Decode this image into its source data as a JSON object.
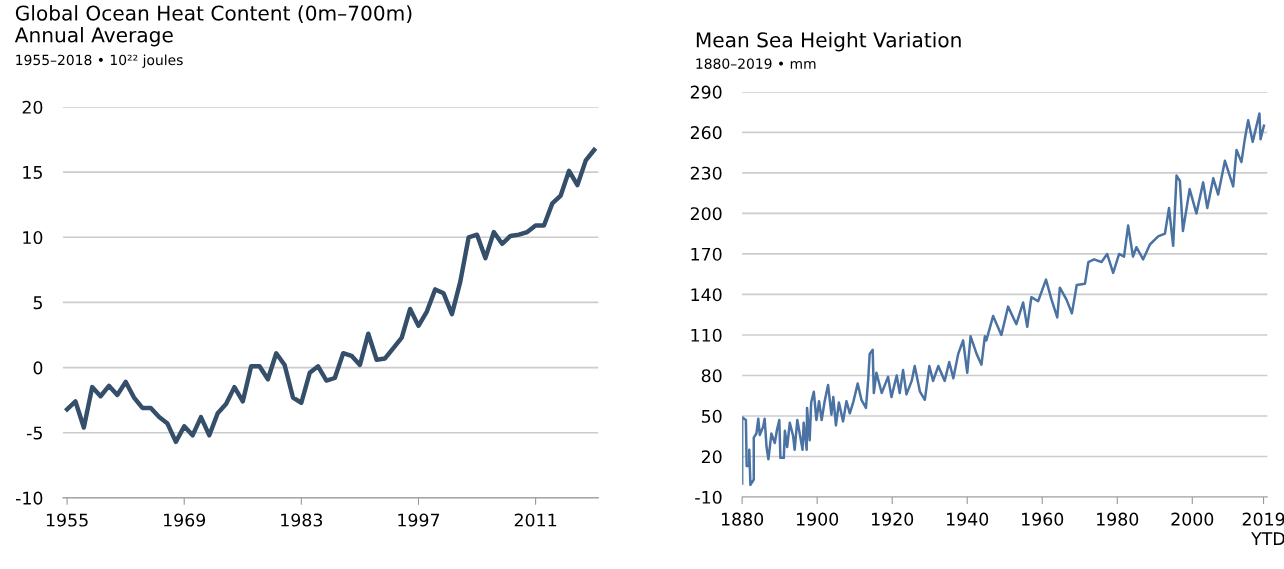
{
  "chart_data": [
    {
      "type": "line",
      "title": "Global Ocean Heat Content (0m–700m)\nAnnual Average",
      "subtitle": "1955–2018 • 10²² joules",
      "x": [
        1955,
        1956,
        1957,
        1958,
        1959,
        1960,
        1961,
        1962,
        1963,
        1964,
        1965,
        1966,
        1967,
        1968,
        1969,
        1970,
        1971,
        1972,
        1973,
        1974,
        1975,
        1976,
        1977,
        1978,
        1979,
        1980,
        1981,
        1982,
        1983,
        1984,
        1985,
        1986,
        1987,
        1988,
        1989,
        1990,
        1991,
        1992,
        1993,
        1994,
        1995,
        1996,
        1997,
        1998,
        1999,
        2000,
        2001,
        2002,
        2003,
        2004,
        2005,
        2006,
        2007,
        2008,
        2009,
        2010,
        2011,
        2012,
        2013,
        2014,
        2015,
        2016,
        2017,
        2018
      ],
      "series": [
        {
          "color": "#354f6b",
          "values": [
            -3.2,
            -2.6,
            -4.6,
            -1.5,
            -2.2,
            -1.4,
            -2.1,
            -1.1,
            -2.3,
            -3.1,
            -3.1,
            -3.8,
            -4.3,
            -5.7,
            -4.5,
            -5.2,
            -3.8,
            -5.2,
            -3.5,
            -2.8,
            -1.5,
            -2.6,
            0.1,
            0.1,
            -0.9,
            1.1,
            0.2,
            -2.3,
            -2.7,
            -0.4,
            0.1,
            -1.0,
            -0.8,
            1.1,
            0.9,
            0.2,
            2.6,
            0.6,
            0.7,
            1.5,
            2.3,
            4.5,
            3.2,
            4.3,
            6.0,
            5.7,
            4.1,
            6.6,
            10.0,
            10.2,
            8.4,
            10.4,
            9.5,
            10.1,
            10.2,
            10.4,
            10.9,
            10.9,
            12.6,
            13.2,
            15.1,
            14.0,
            15.9,
            16.7
          ]
        }
      ],
      "xlim": [
        1954.5,
        2018.5
      ],
      "xticks": [
        1955,
        1969,
        1983,
        1997,
        2011
      ],
      "ylim": [
        -10,
        20
      ],
      "yticks": [
        -10,
        -5,
        0,
        5,
        10,
        15,
        20
      ],
      "grid": "y",
      "line_style": "solid"
    },
    {
      "type": "line",
      "title": "Mean Sea Height Variation",
      "subtitle": "1880–2019 • mm",
      "x": [
        1880.0,
        1880.0,
        1881.0,
        1881.2,
        1881.9,
        1881.9,
        1882.2,
        1883.1,
        1883.1,
        1883.8,
        1884.3,
        1884.7,
        1885.6,
        1886.0,
        1886.5,
        1887.0,
        1887.8,
        1888.7,
        1889.3,
        1889.9,
        1890.2,
        1891.1,
        1891.4,
        1892.0,
        1892.7,
        1893.6,
        1894.0,
        1894.7,
        1895.4,
        1896.1,
        1896.4,
        1897.2,
        1897.3,
        1898.0,
        1898.4,
        1899.1,
        1899.8,
        1900.5,
        1901.2,
        1902.0,
        1902.9,
        1903.8,
        1904.3,
        1905.0,
        1905.8,
        1906.9,
        1907.8,
        1908.7,
        1909.6,
        1910.8,
        1911.8,
        1913.0,
        1913.6,
        1914.0,
        1914.8,
        1915.1,
        1915.8,
        1917.2,
        1918.9,
        1919.8,
        1921.2,
        1922.0,
        1922.9,
        1923.8,
        1925.2,
        1926.0,
        1927.4,
        1928.7,
        1929.9,
        1930.9,
        1932.3,
        1934.0,
        1935.2,
        1936.3,
        1937.6,
        1938.9,
        1940.0,
        1940.9,
        1942.5,
        1943.8,
        1944.7,
        1945.1,
        1946.9,
        1949.1,
        1950.9,
        1953.1,
        1954.9,
        1956.0,
        1957.1,
        1958.9,
        1961.0,
        1962.5,
        1964.0,
        1964.7,
        1966.5,
        1967.9,
        1969.2,
        1971.4,
        1972.3,
        1973.8,
        1975.8,
        1977.3,
        1978.9,
        1980.5,
        1981.8,
        1982.9,
        1984.2,
        1985.1,
        1986.9,
        1988.7,
        1990.9,
        1992.7,
        1993.8,
        1994.9,
        1995.8,
        1996.7,
        1997.5,
        1999.3,
        2001.1,
        2002.9,
        2004.0,
        2005.6,
        2006.9,
        2008.7,
        2010.9,
        2011.8,
        2013.1,
        2014.0,
        2014.9,
        2016.1,
        2017.9,
        2018.2,
        2019.1
      ],
      "series": [
        {
          "color": "#4a72a3",
          "values": [
            0,
            49,
            47,
            13,
            13,
            25,
            -1,
            3,
            34,
            37,
            48,
            36,
            42,
            48,
            27,
            18,
            37,
            30,
            40,
            47,
            19,
            19,
            39,
            27,
            45,
            35,
            25,
            47,
            36,
            25,
            45,
            25,
            56,
            32,
            60,
            68,
            47,
            61,
            47,
            61,
            73,
            51,
            64,
            43,
            60,
            46,
            61,
            52,
            60,
            74,
            62,
            56,
            77,
            96,
            99,
            67,
            82,
            67,
            79,
            64,
            80,
            67,
            84,
            66,
            76,
            87,
            68,
            62,
            87,
            76,
            87,
            76,
            90,
            78,
            96,
            106,
            82,
            109,
            96,
            88,
            109,
            106,
            124,
            110,
            131,
            118,
            134,
            116,
            138,
            135,
            151,
            136,
            123,
            145,
            136,
            126,
            147,
            148,
            164,
            166,
            164,
            170,
            156,
            170,
            168,
            191,
            168,
            175,
            166,
            177,
            183,
            185,
            204,
            176,
            228,
            224,
            187,
            218,
            200,
            223,
            204,
            226,
            214,
            239,
            220,
            247,
            238,
            255,
            269,
            253,
            274,
            255,
            265
          ]
        }
      ],
      "xlim": [
        1880,
        2020
      ],
      "xticks": [
        1880,
        1900,
        1920,
        1940,
        1960,
        1980,
        2000,
        {
          "value": 2019,
          "label": "2019\nYTD"
        }
      ],
      "ylim": [
        -10,
        290
      ],
      "yticks": [
        -10,
        20,
        50,
        80,
        110,
        140,
        170,
        200,
        230,
        260,
        290
      ],
      "grid": "y",
      "line_style": "solid"
    }
  ]
}
